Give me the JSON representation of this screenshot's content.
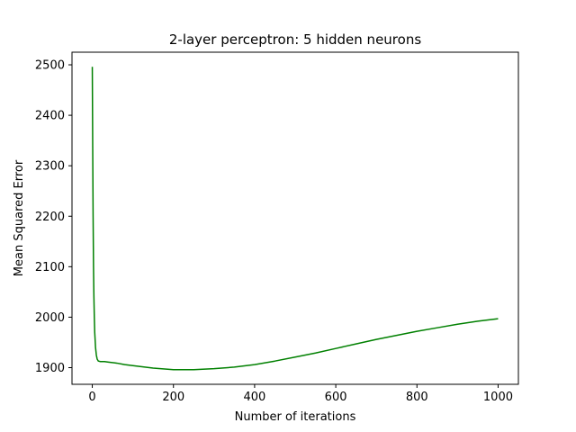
{
  "chart_data": {
    "type": "line",
    "title": "2-layer perceptron: 5 hidden neurons",
    "xlabel": "Number of iterations",
    "ylabel": "Mean Squared Error",
    "xlim": [
      -50,
      1050
    ],
    "ylim": [
      1867,
      2525
    ],
    "x_ticks": [
      0,
      200,
      400,
      600,
      800,
      1000
    ],
    "y_ticks": [
      1900,
      2000,
      2100,
      2200,
      2300,
      2400,
      2500
    ],
    "grid": false,
    "legend": "none",
    "line_color": "#008000",
    "series": [
      {
        "x": [
          0,
          1,
          2,
          3,
          4,
          5,
          6,
          8,
          10,
          12,
          15,
          20,
          30,
          40,
          60,
          80,
          100,
          150,
          200,
          250,
          300,
          350,
          400,
          450,
          500,
          550,
          600,
          650,
          700,
          750,
          800,
          850,
          900,
          950,
          1000
        ],
        "values": [
          2496,
          2340,
          2200,
          2100,
          2040,
          2000,
          1970,
          1940,
          1925,
          1917,
          1913,
          1912,
          1912,
          1911,
          1909,
          1906,
          1904,
          1899,
          1896,
          1896,
          1898,
          1901,
          1906,
          1913,
          1921,
          1929,
          1938,
          1947,
          1956,
          1964,
          1972,
          1979,
          1986,
          1992,
          1997
        ]
      }
    ]
  }
}
